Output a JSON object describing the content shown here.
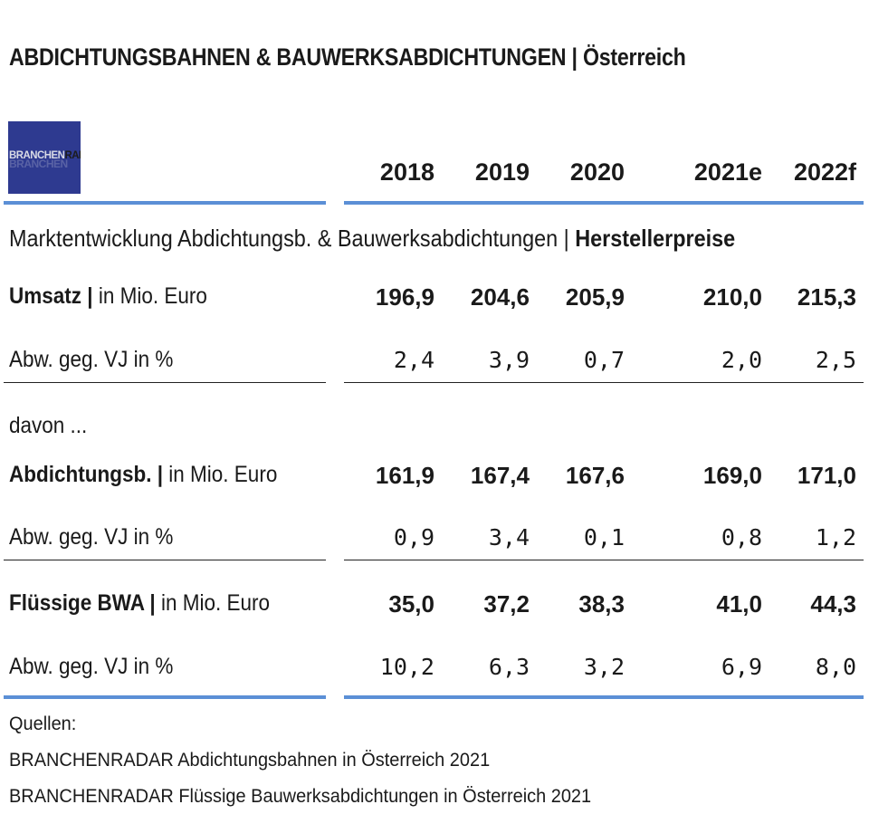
{
  "title": {
    "main": "ABDICHTUNGSBAHNEN & BAUWERKSABDICHTUNGEN",
    "separator": "|",
    "region": "Österreich"
  },
  "logo": {
    "part1": "BRANCHEN",
    "part2": "RADAR"
  },
  "colors": {
    "accent_line": "#5b8fd6",
    "logo_bg": "#2e3a90"
  },
  "years": [
    "2018",
    "2019",
    "2020",
    "2021e",
    "2022f"
  ],
  "subtitle": {
    "text": "Marktentwicklung Abdichtungsb. & Bauwerksabdichtungen | ",
    "bold": "Herstellerpreise"
  },
  "rows": {
    "umsatz": {
      "label_bold": "Umsatz |",
      "label_rest": " in Mio. Euro",
      "values": [
        "196,9",
        "204,6",
        "205,9",
        "210,0",
        "215,3"
      ]
    },
    "umsatz_abw": {
      "label": "Abw. geg. VJ in %",
      "values": [
        "2,4",
        "3,9",
        "0,7",
        "2,0",
        "2,5"
      ]
    },
    "davon": {
      "label": "davon ..."
    },
    "abdichtung": {
      "label_bold": "Abdichtungsb. |",
      "label_rest": " in Mio. Euro",
      "values": [
        "161,9",
        "167,4",
        "167,6",
        "169,0",
        "171,0"
      ]
    },
    "abdichtung_abw": {
      "label": "Abw. geg. VJ in %",
      "values": [
        "0,9",
        "3,4",
        "0,1",
        "0,8",
        "1,2"
      ]
    },
    "bwa": {
      "label_bold": "Flüssige BWA |",
      "label_rest": " in Mio. Euro",
      "values": [
        "35,0",
        "37,2",
        "38,3",
        "41,0",
        "44,3"
      ]
    },
    "bwa_abw": {
      "label": "Abw. geg. VJ in %",
      "values": [
        "10,2",
        "6,3",
        "3,2",
        "6,9",
        "8,0"
      ]
    }
  },
  "sources": {
    "heading": "Quellen:",
    "items": [
      "BRANCHENRADAR Abdichtungsbahnen in Österreich 2021",
      "BRANCHENRADAR Flüssige Bauwerksabdichtungen in Österreich 2021"
    ]
  }
}
